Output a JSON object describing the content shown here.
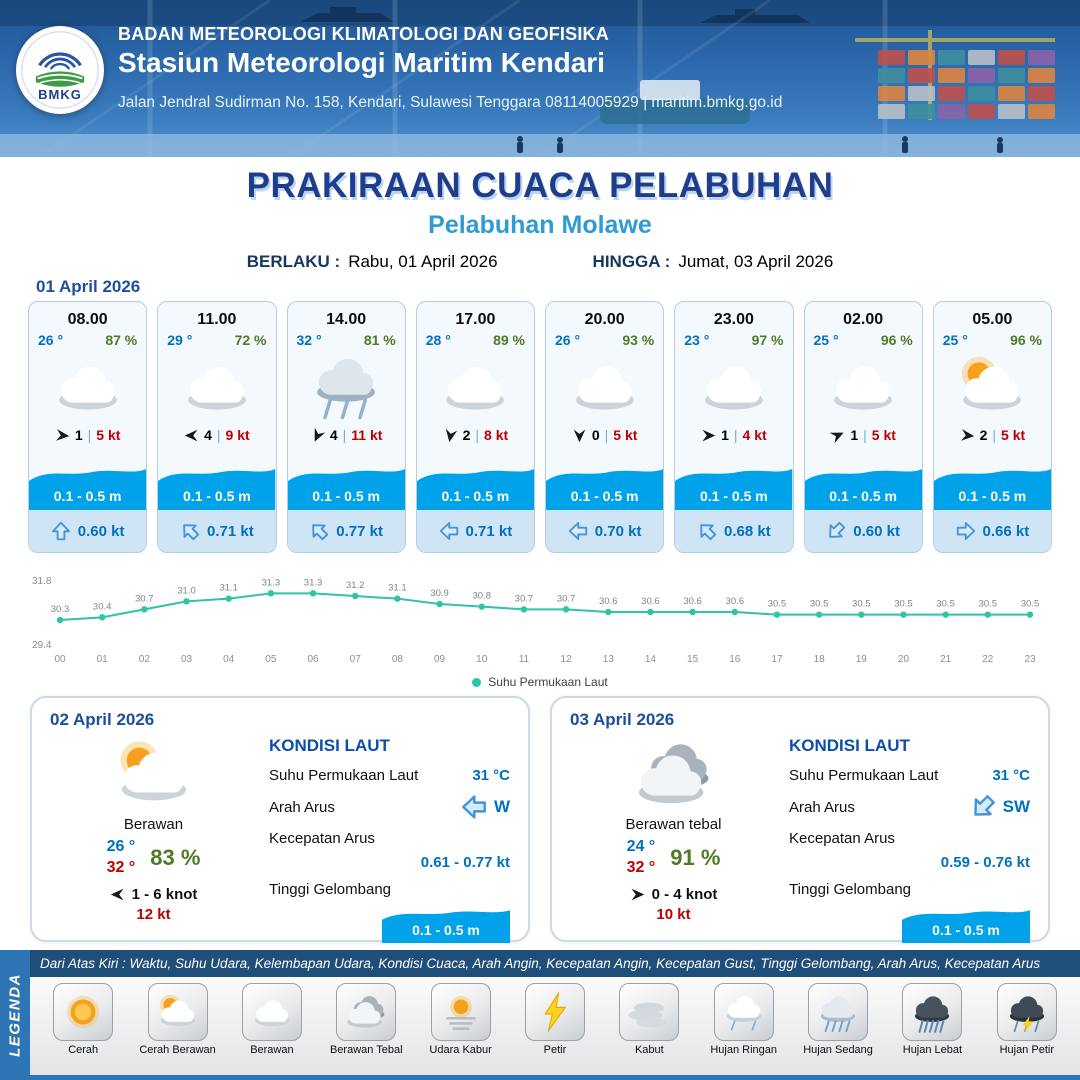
{
  "header": {
    "agency": "BADAN METEOROLOGI KLIMATOLOGI DAN GEOFISIKA",
    "station": "Stasiun Meteorologi Maritim Kendari",
    "address": "Jalan Jendral Sudirman No. 158, Kendari, Sulawesi Tenggara  08114005929 | maritim.bmkg.go.id",
    "logo_text": "BMKG"
  },
  "title": {
    "main": "PRAKIRAAN CUACA PELABUHAN",
    "subtitle": "Pelabuhan Molawe",
    "berlaku_label": "BERLAKU :",
    "berlaku_value": "Rabu, 01 April 2026",
    "hingga_label": "HINGGA :",
    "hingga_value": "Jumat, 03 April 2026"
  },
  "forecast": {
    "date": "01 April 2026",
    "cards": [
      {
        "time": "08.00",
        "temp": "26 °",
        "hum": "87 %",
        "icon": "cloud",
        "wind_deg": 5,
        "wind_val": "1",
        "wind_kt": "5 kt",
        "wave": "0.1 - 0.5 m",
        "cur_dir": "N",
        "cur": "0.60 kt"
      },
      {
        "time": "11.00",
        "temp": "29 °",
        "hum": "72 %",
        "icon": "cloud",
        "wind_deg": 180,
        "wind_val": "4",
        "wind_kt": "9 kt",
        "wave": "0.1 - 0.5 m",
        "cur_dir": "NW",
        "cur": "0.71 kt"
      },
      {
        "time": "14.00",
        "temp": "32 °",
        "hum": "81 %",
        "icon": "rain",
        "wind_deg": 115,
        "wind_val": "4",
        "wind_kt": "11 kt",
        "wave": "0.1 - 0.5 m",
        "cur_dir": "NW",
        "cur": "0.77 kt"
      },
      {
        "time": "17.00",
        "temp": "28 °",
        "hum": "89 %",
        "icon": "cloud",
        "wind_deg": 100,
        "wind_val": "2",
        "wind_kt": "8 kt",
        "wave": "0.1 - 0.5 m",
        "cur_dir": "W",
        "cur": "0.71 kt"
      },
      {
        "time": "20.00",
        "temp": "26 °",
        "hum": "93 %",
        "icon": "cloud",
        "wind_deg": 90,
        "wind_val": "0",
        "wind_kt": "5 kt",
        "wave": "0.1 - 0.5 m",
        "cur_dir": "W",
        "cur": "0.70 kt"
      },
      {
        "time": "23.00",
        "temp": "23 °",
        "hum": "97 %",
        "icon": "cloud",
        "wind_deg": 0,
        "wind_val": "1",
        "wind_kt": "4 kt",
        "wave": "0.1 - 0.5 m",
        "cur_dir": "NW",
        "cur": "0.68 kt"
      },
      {
        "time": "02.00",
        "temp": "25 °",
        "hum": "96 %",
        "icon": "cloud",
        "wind_deg": -25,
        "wind_val": "1",
        "wind_kt": "5 kt",
        "wave": "0.1 - 0.5 m",
        "cur_dir": "SW",
        "cur": "0.60 kt"
      },
      {
        "time": "05.00",
        "temp": "25 °",
        "hum": "96 %",
        "icon": "sun-cloud",
        "wind_deg": 5,
        "wind_val": "2",
        "wind_kt": "5 kt",
        "wave": "0.1 - 0.5 m",
        "cur_dir": "E",
        "cur": "0.66 kt"
      }
    ]
  },
  "chart_data": {
    "type": "line",
    "legend": "Suhu Permukaan Laut",
    "x": [
      "00",
      "01",
      "02",
      "03",
      "04",
      "05",
      "06",
      "07",
      "08",
      "09",
      "10",
      "11",
      "12",
      "13",
      "14",
      "15",
      "16",
      "17",
      "18",
      "19",
      "20",
      "21",
      "22",
      "23"
    ],
    "values": [
      30.3,
      30.4,
      30.7,
      31.0,
      31.1,
      31.3,
      31.3,
      31.2,
      31.1,
      30.9,
      30.8,
      30.7,
      30.7,
      30.6,
      30.6,
      30.6,
      30.6,
      30.5,
      30.5,
      30.5,
      30.5,
      30.5,
      30.5,
      30.5
    ],
    "ylim": [
      29.4,
      31.8
    ],
    "color": "#2ec4a5",
    "xlabel": "",
    "ylabel": ""
  },
  "sea_labels": {
    "title": "KONDISI LAUT",
    "sst": "Suhu Permukaan Laut",
    "arah": "Arah Arus",
    "kecepatan": "Kecepatan Arus",
    "tinggi": "Tinggi Gelombang"
  },
  "day_cards": [
    {
      "date": "02 April 2026",
      "icon": "sun-cloud",
      "condition": "Berawan",
      "temp_min": "26 °",
      "temp_max": "32 °",
      "humidity": "83 %",
      "wind_deg": 180,
      "wind_range": "1 - 6 knot",
      "gust": "12 kt",
      "sst": "31 °C",
      "arus_dir": "W",
      "arus_label": "W",
      "arus_speed": "0.61 - 0.77 kt",
      "wave": "0.1 - 0.5 m"
    },
    {
      "date": "03 April 2026",
      "icon": "cloud-thick",
      "condition": "Berawan tebal",
      "temp_min": "24 °",
      "temp_max": "32 °",
      "humidity": "91 %",
      "wind_deg": 0,
      "wind_range": "0 - 4 knot",
      "gust": "10 kt",
      "sst": "31 °C",
      "arus_dir": "SW",
      "arus_label": "SW",
      "arus_speed": "0.59 - 0.76 kt",
      "wave": "0.1 - 0.5 m"
    }
  ],
  "legend": {
    "title": "LEGENDA",
    "note": "Dari Atas Kiri : Waktu, Suhu Udara, Kelembapan Udara, Kondisi Cuaca, Arah Angin, Kecepatan Angin, Kecepatan Gust, Tinggi Gelombang, Arah Arus, Kecepatan Arus",
    "items": [
      {
        "label": "Cerah",
        "icon": "sun"
      },
      {
        "label": "Cerah Berawan",
        "icon": "sun-cloud"
      },
      {
        "label": "Berawan",
        "icon": "cloud"
      },
      {
        "label": "Berawan Tebal",
        "icon": "cloud-thick"
      },
      {
        "label": "Udara Kabur",
        "icon": "haze"
      },
      {
        "label": "Petir",
        "icon": "lightning"
      },
      {
        "label": "Kabut",
        "icon": "fog"
      },
      {
        "label": "Hujan Ringan",
        "icon": "rain-light"
      },
      {
        "label": "Hujan Sedang",
        "icon": "rain-medium"
      },
      {
        "label": "Hujan Lebat",
        "icon": "rain-heavy"
      },
      {
        "label": "Hujan Petir",
        "icon": "rain-thunder"
      }
    ]
  }
}
